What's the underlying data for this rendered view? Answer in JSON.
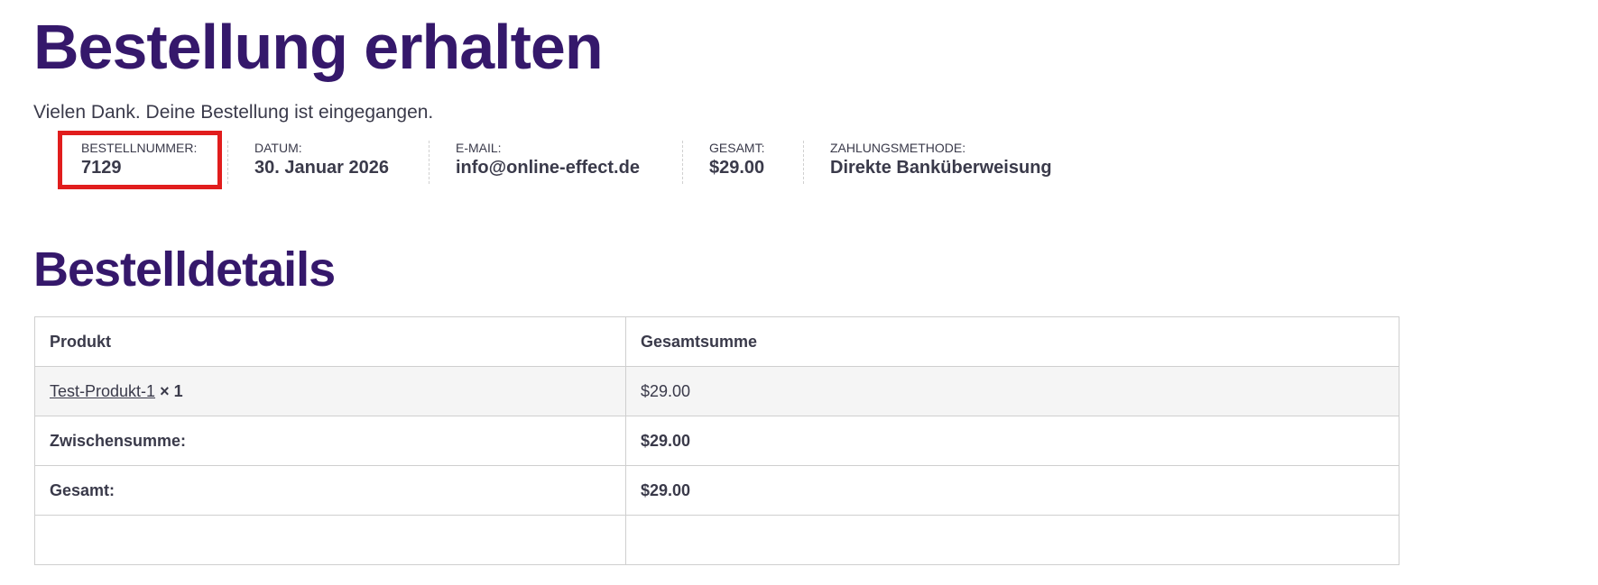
{
  "page_title": "Bestellung erhalten",
  "thank_you": "Vielen Dank. Deine Bestellung ist eingegangen.",
  "overview": [
    {
      "label": "Bestellnummer:",
      "value": "7129"
    },
    {
      "label": "Datum:",
      "value": "30. Januar 2026"
    },
    {
      "label": "E-Mail:",
      "value": "info@online-effect.de"
    },
    {
      "label": "Gesamt:",
      "value": "$29.00"
    },
    {
      "label": "Zahlungsmethode:",
      "value": "Direkte Banküberweisung"
    }
  ],
  "highlight_color": "#e11d1d",
  "details_title": "Bestelldetails",
  "table": {
    "headers": [
      "Produkt",
      "Gesamtsumme"
    ],
    "item": {
      "name": "Test-Produkt-1",
      "qty": "× 1",
      "total": "$29.00"
    },
    "subtotal": {
      "label": "Zwischensumme:",
      "value": "$29.00"
    },
    "total": {
      "label": "Gesamt:",
      "value": "$29.00"
    }
  }
}
